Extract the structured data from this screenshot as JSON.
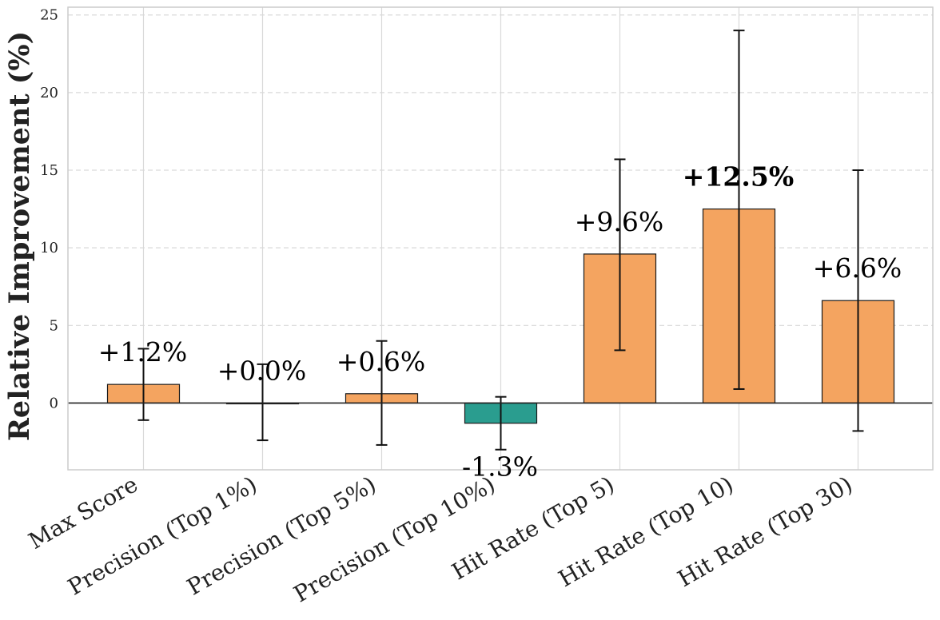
{
  "chart_data": {
    "type": "bar",
    "title": "",
    "xlabel": "",
    "ylabel": "Relative Improvement (%)",
    "ylim": [
      -4.3,
      25.5
    ],
    "yticks": [
      0,
      5,
      10,
      15,
      20,
      25
    ],
    "categories": [
      "Max Score",
      "Precision (Top 1%)",
      "Precision (Top 5%)",
      "Precision (Top 10%)",
      "Hit Rate (Top 5)",
      "Hit Rate (Top 10)",
      "Hit Rate (Top 30)"
    ],
    "values": [
      1.2,
      0.0,
      0.6,
      -1.3,
      9.6,
      12.5,
      6.6
    ],
    "error_low": [
      -1.1,
      -2.4,
      -2.7,
      -3.0,
      3.4,
      0.9,
      -1.8
    ],
    "error_high": [
      3.5,
      2.5,
      4.0,
      0.4,
      15.7,
      24.0,
      15.0
    ],
    "labels": [
      "+1.2%",
      "+0.0%",
      "+0.6%",
      "-1.3%",
      "+9.6%",
      "+12.5%",
      "+6.6%"
    ],
    "highlight_index": 5,
    "colors": {
      "positive": "#F4A460",
      "negative": "#2A9D8F",
      "edge": "#1a1a1a",
      "grid": "#d9d9d9"
    },
    "grid": true,
    "legend": "none"
  }
}
